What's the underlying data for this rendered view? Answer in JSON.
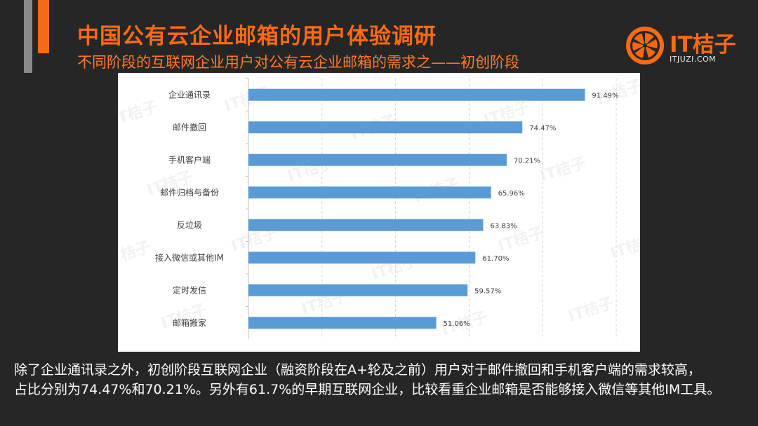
{
  "slide": {
    "title": "中国公有云企业邮箱的用户体验调研",
    "subtitle": "不同阶段的互联网企业用户对公有云企业邮箱的需求之——初创阶段"
  },
  "logo": {
    "name": "IT桔子",
    "domain": "ITJUZI.COM",
    "color": "#ff6a13"
  },
  "watermark_text": "IT桔子",
  "chart_data": {
    "type": "bar",
    "orientation": "horizontal",
    "categories": [
      "企业通讯录",
      "邮件撤回",
      "手机客户端",
      "邮件归档与备份",
      "反垃圾",
      "接入微信或其他IM",
      "定时发信",
      "邮箱搬家"
    ],
    "values": [
      91.49,
      74.47,
      70.21,
      65.96,
      63.83,
      61.7,
      59.57,
      51.06
    ],
    "data_labels": [
      "91.49%",
      "74.47%",
      "70.21%",
      "65.96%",
      "63.83%",
      "61.70%",
      "59.57%",
      "51.06%"
    ],
    "xlim": [
      0,
      100
    ],
    "grid": "vertical-dashed",
    "bar_color": "#5b9bd5",
    "title": "",
    "xlabel": "",
    "ylabel": ""
  },
  "caption": {
    "line1": "除了企业通讯录之外，初创阶段互联网企业（融资阶段在A+轮及之前）用户对于邮件撤回和手机客户端的需求较高，",
    "line2": "占比分别为74.47%和70.21%。另外有61.7%的早期互联网企业，比较看重企业邮箱是否能够接入微信等其他IM工具。"
  }
}
